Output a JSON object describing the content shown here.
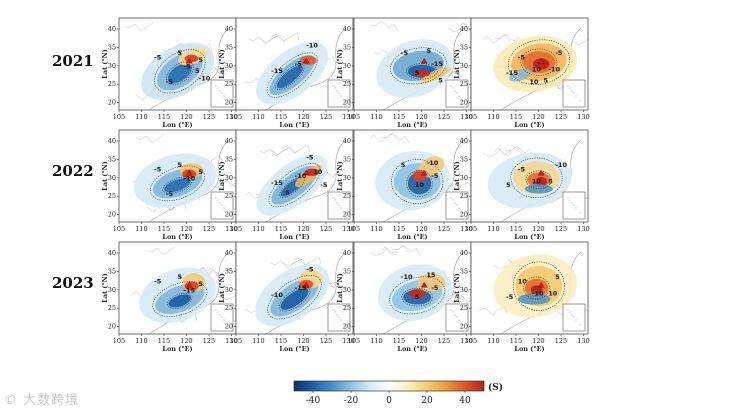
{
  "figure": {
    "rows": [
      {
        "label": "2021",
        "panels": [
          {
            "xlabel": "Lon (°E)",
            "ylabel": "Lat (°N)",
            "contour_labels": [
              "-5",
              "5",
              "-5",
              "5",
              "-5",
              "5",
              "-10"
            ]
          },
          {
            "xlabel": "Lon (°E)",
            "ylabel": "Lat (°N)",
            "contour_labels": [
              "-10",
              "-15",
              "-5"
            ]
          },
          {
            "xlabel": "Lon (°E)",
            "ylabel": "Lat (°N)",
            "contour_labels": [
              "-5",
              "5",
              "5",
              "-15",
              "5"
            ]
          },
          {
            "xlabel": "Lon (°E)",
            "ylabel": "Lat (°N)",
            "contour_labels": [
              "-5",
              "-15",
              "-5",
              "10",
              "-10",
              "5",
              "10"
            ]
          }
        ]
      },
      {
        "label": "2022",
        "panels": [
          {
            "xlabel": "Lon (°E)",
            "ylabel": "Lat (°N)",
            "contour_labels": [
              "-5",
              "5",
              "-10",
              "5",
              "-5"
            ]
          },
          {
            "xlabel": "Lon (°E)",
            "ylabel": "Lat (°N)",
            "contour_labels": [
              "-5",
              "-15",
              "-10",
              "10",
              "5",
              "-5"
            ]
          },
          {
            "xlabel": "Lon (°E)",
            "ylabel": "Lat (°N)",
            "contour_labels": [
              "5",
              "-10",
              "10",
              "-5"
            ]
          },
          {
            "xlabel": "Lon (°E)",
            "ylabel": "Lat (°N)",
            "contour_labels": [
              "-5",
              "5",
              "-10",
              "10",
              "5"
            ]
          }
        ]
      },
      {
        "label": "2023",
        "panels": [
          {
            "xlabel": "Lon (°E)",
            "ylabel": "Lat (°N)",
            "contour_labels": [
              "-5",
              "5",
              "-15",
              "5"
            ]
          },
          {
            "xlabel": "Lon (°E)",
            "ylabel": "Lat (°N)",
            "contour_labels": [
              "-5",
              "-10",
              "-15"
            ]
          },
          {
            "xlabel": "Lon (°E)",
            "ylabel": "Lat (°N)",
            "contour_labels": [
              "-10",
              "15",
              "5",
              "-5"
            ]
          },
          {
            "xlabel": "Lon (°E)",
            "ylabel": "Lat (°N)",
            "contour_labels": [
              "10",
              "-5",
              "5",
              "-10",
              "10"
            ]
          }
        ]
      }
    ],
    "lon_ticks": [
      105,
      110,
      115,
      120,
      125,
      130
    ],
    "lat_ticks": [
      20,
      25,
      30,
      35,
      40
    ],
    "colorbar": {
      "ticks": [
        -40,
        -20,
        0,
        20,
        40
      ],
      "min": -50,
      "max": 50,
      "unit": "(S)",
      "colors": [
        "#08306b",
        "#1f5fa5",
        "#4a90c6",
        "#8ec3e2",
        "#d8ecf6",
        "#ffffff",
        "#fbf2bd",
        "#f5cf72",
        "#ef9a3a",
        "#e0532a",
        "#b8201d"
      ]
    },
    "watermark": "© 大数跨境"
  }
}
